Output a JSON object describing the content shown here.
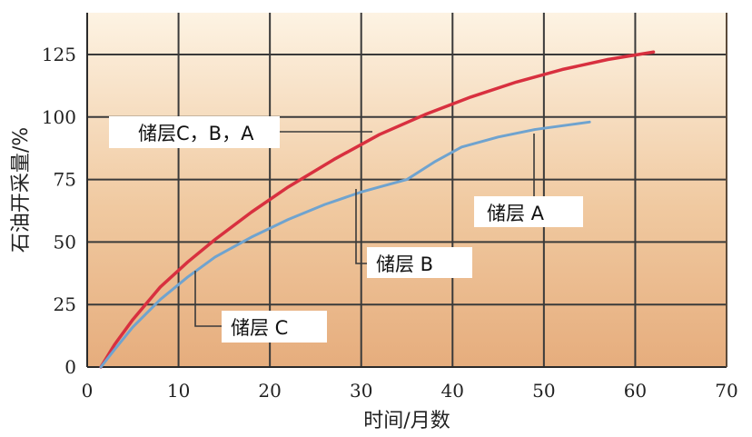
{
  "chart_data": {
    "type": "line",
    "xlabel": "时间/月数",
    "ylabel": "石油开采量/%",
    "xlim": [
      0,
      70
    ],
    "ylim": [
      0,
      135
    ],
    "x_ticks": [
      "0",
      "10",
      "20",
      "30",
      "40",
      "50",
      "60",
      "70"
    ],
    "y_ticks": [
      "0",
      "25",
      "50",
      "75",
      "100",
      "125"
    ],
    "grid": true,
    "series": [
      {
        "name": "储层C，B，A",
        "color": "#d8303f",
        "x": [
          1.5,
          3,
          5,
          8,
          11,
          14,
          18,
          22,
          27,
          32,
          37,
          42,
          47,
          52,
          57,
          62
        ],
        "y": [
          0,
          9,
          19,
          32,
          42,
          51,
          62,
          72,
          83,
          93,
          101,
          108,
          114,
          119,
          123,
          126
        ]
      },
      {
        "name": "储层 A",
        "color": "#6fa3cf",
        "x": [
          1.5,
          3,
          5,
          8,
          11,
          14,
          18,
          22,
          26,
          30,
          35,
          38,
          41,
          45,
          49,
          53,
          55
        ],
        "y": [
          0,
          7,
          16,
          27,
          36,
          44,
          52,
          59,
          65,
          70,
          75,
          82,
          88,
          92,
          95,
          97,
          98
        ]
      }
    ],
    "annotations": [
      {
        "text": "储层C，B，A",
        "x": 31,
        "y": 95
      },
      {
        "text": "储层  A",
        "x": 50,
        "y": 92
      },
      {
        "text": "储层    B",
        "x": 30,
        "y": 72
      },
      {
        "text": "储层  C",
        "x": 11.5,
        "y": 40
      }
    ]
  }
}
